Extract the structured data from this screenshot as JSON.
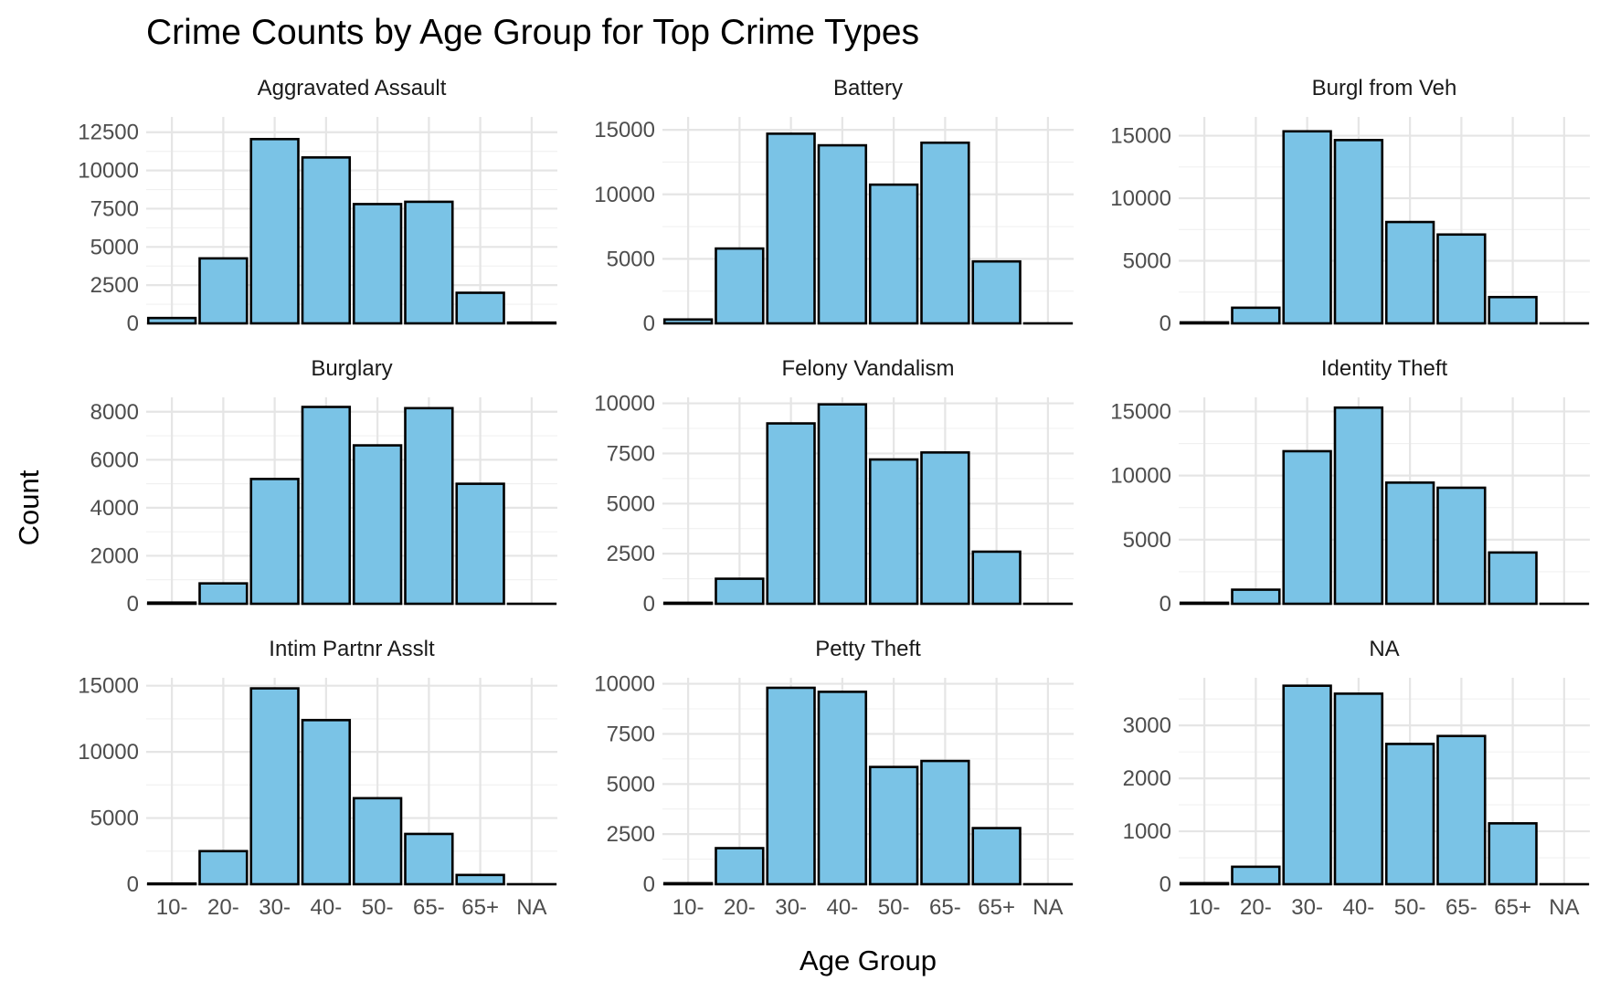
{
  "chart_data": {
    "type": "bar",
    "title": "Crime Counts by Age Group for Top Crime Types",
    "xlabel": "Age Group",
    "ylabel": "Count",
    "categories": [
      "10-",
      "20-",
      "30-",
      "40-",
      "50-",
      "65-",
      "65+",
      "NA"
    ],
    "grid": true,
    "bar_fill": "#7ac3e6",
    "bar_outline": "#000000",
    "panels": [
      {
        "name": "Aggravated Assault",
        "ylim": [
          0,
          13500
        ],
        "yticks": [
          0,
          2500,
          5000,
          7500,
          10000,
          12500
        ],
        "values": [
          350,
          4250,
          12050,
          10850,
          7800,
          7950,
          2000,
          50
        ]
      },
      {
        "name": "Battery",
        "ylim": [
          0,
          16000
        ],
        "yticks": [
          0,
          5000,
          10000,
          15000
        ],
        "values": [
          300,
          5800,
          14700,
          13800,
          10750,
          14000,
          4800,
          0
        ]
      },
      {
        "name": "Burgl from Veh",
        "ylim": [
          0,
          16500
        ],
        "yticks": [
          0,
          5000,
          10000,
          15000
        ],
        "values": [
          80,
          1250,
          15350,
          14650,
          8100,
          7100,
          2100,
          0
        ]
      },
      {
        "name": "Burglary",
        "ylim": [
          0,
          8600
        ],
        "yticks": [
          0,
          2000,
          4000,
          6000,
          8000
        ],
        "values": [
          50,
          850,
          5200,
          8200,
          6600,
          8150,
          5000,
          0
        ]
      },
      {
        "name": "Felony Vandalism",
        "ylim": [
          0,
          10300
        ],
        "yticks": [
          0,
          2500,
          5000,
          7500,
          10000
        ],
        "values": [
          50,
          1250,
          9000,
          9950,
          7200,
          7550,
          2600,
          0
        ]
      },
      {
        "name": "Identity Theft",
        "ylim": [
          0,
          16100
        ],
        "yticks": [
          0,
          5000,
          10000,
          15000
        ],
        "values": [
          80,
          1100,
          11900,
          15300,
          9450,
          9050,
          4000,
          0
        ]
      },
      {
        "name": "Intim Partnr Asslt",
        "ylim": [
          0,
          15600
        ],
        "yticks": [
          0,
          5000,
          10000,
          15000
        ],
        "values": [
          50,
          2500,
          14800,
          12400,
          6500,
          3800,
          700,
          0
        ]
      },
      {
        "name": "Petty Theft",
        "ylim": [
          0,
          10300
        ],
        "yticks": [
          0,
          2500,
          5000,
          7500,
          10000
        ],
        "values": [
          50,
          1800,
          9800,
          9600,
          5850,
          6150,
          2800,
          0
        ]
      },
      {
        "name": "NA",
        "ylim": [
          0,
          3900
        ],
        "yticks": [
          0,
          1000,
          2000,
          3000
        ],
        "values": [
          20,
          330,
          3750,
          3600,
          2650,
          2800,
          1150,
          0
        ]
      }
    ]
  }
}
